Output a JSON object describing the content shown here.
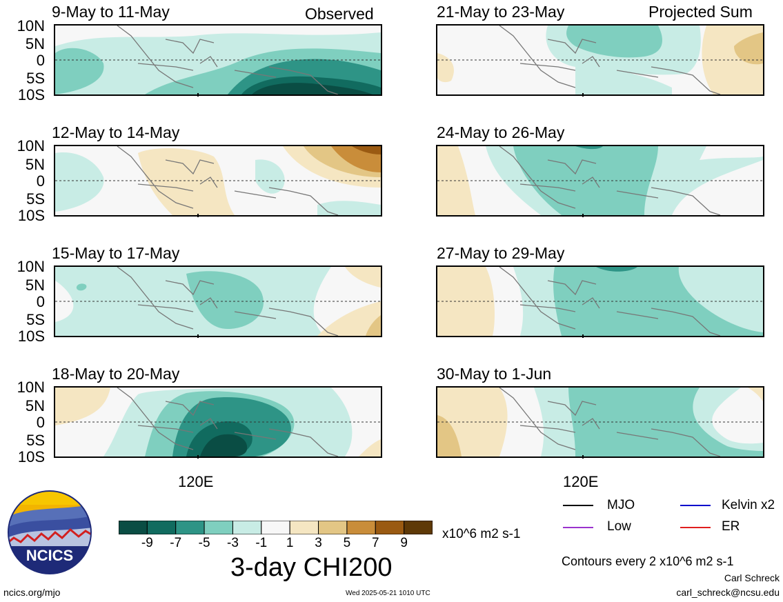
{
  "panels": [
    {
      "id": "p1",
      "title": "9-May to 11-May",
      "corner_label": "Observed"
    },
    {
      "id": "p2",
      "title": "12-May to 14-May"
    },
    {
      "id": "p3",
      "title": "15-May to 17-May"
    },
    {
      "id": "p4",
      "title": "18-May to 20-May"
    },
    {
      "id": "p5",
      "title": "21-May to 23-May",
      "corner_label": "Projected Sum"
    },
    {
      "id": "p6",
      "title": "24-May to 26-May"
    },
    {
      "id": "p7",
      "title": "27-May to 29-May"
    },
    {
      "id": "p8",
      "title": "30-May to 1-Jun"
    }
  ],
  "axis": {
    "lat_labels": [
      "10N",
      "5N",
      "0",
      "5S",
      "10S"
    ],
    "lon_label": "120E"
  },
  "colorbar": {
    "tick_labels": [
      "-9",
      "-7",
      "-5",
      "-3",
      "-1",
      "1",
      "3",
      "5",
      "7",
      "9"
    ],
    "units": "x10^6 m2 s-1",
    "colors": [
      "#0a4d44",
      "#116b5f",
      "#2e9486",
      "#7fcfbf",
      "#c8ece5",
      "#f7f7f7",
      "#f5e6c2",
      "#e3c685",
      "#c98d3a",
      "#9a5a12",
      "#5e3907"
    ]
  },
  "main_title": "3-day CHI200",
  "legend": [
    {
      "label": "MJO",
      "color": "#000000"
    },
    {
      "label": "Kelvin x2",
      "color": "#0000cc"
    },
    {
      "label": "Low",
      "color": "#9a32cd"
    },
    {
      "label": "ER",
      "color": "#e01e1e"
    }
  ],
  "contour_note": "Contours every 2 x10^6 m2 s-1",
  "author": "Carl Schreck",
  "email": "carl_schreck@ncsu.edu",
  "url": "ncics.org/mjo",
  "timestamp": "Wed 2025-05-21 1010 UTC",
  "logo_text": "NCICS"
}
